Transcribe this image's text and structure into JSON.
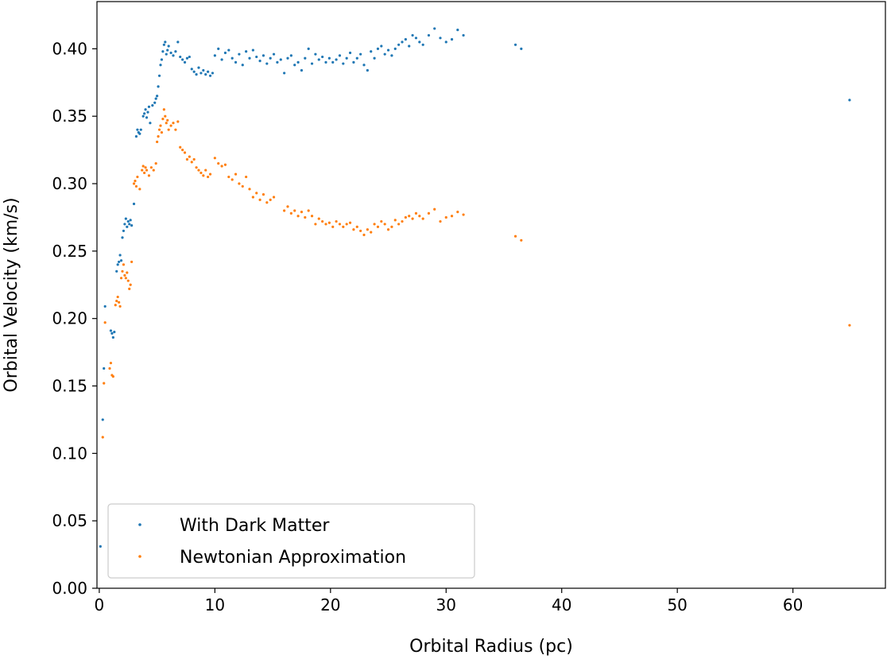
{
  "chart_data": {
    "type": "scatter",
    "title": "",
    "xlabel": "Orbital Radius (pc)",
    "ylabel": "Orbital Velocity (km/s)",
    "xlim": [
      -0.2,
      68
    ],
    "ylim": [
      0.0,
      0.435
    ],
    "xticks": [
      0,
      10,
      20,
      30,
      40,
      50,
      60
    ],
    "yticks": [
      0.0,
      0.05,
      0.1,
      0.15,
      0.2,
      0.25,
      0.3,
      0.35,
      0.4
    ],
    "grid": false,
    "legend_position": "lower-left",
    "series": [
      {
        "name": "With Dark Matter",
        "color": "#1f77b4",
        "points": [
          [
            0.1,
            0.031
          ],
          [
            0.3,
            0.125
          ],
          [
            0.4,
            0.163
          ],
          [
            0.5,
            0.209
          ],
          [
            1.0,
            0.191
          ],
          [
            1.1,
            0.189
          ],
          [
            1.2,
            0.186
          ],
          [
            1.3,
            0.19
          ],
          [
            1.5,
            0.235
          ],
          [
            1.6,
            0.24
          ],
          [
            1.7,
            0.242
          ],
          [
            1.8,
            0.247
          ],
          [
            1.9,
            0.243
          ],
          [
            2.0,
            0.26
          ],
          [
            2.1,
            0.265
          ],
          [
            2.2,
            0.27
          ],
          [
            2.3,
            0.274
          ],
          [
            2.4,
            0.268
          ],
          [
            2.5,
            0.272
          ],
          [
            2.6,
            0.27
          ],
          [
            2.7,
            0.273
          ],
          [
            2.8,
            0.269
          ],
          [
            3.0,
            0.285
          ],
          [
            3.2,
            0.335
          ],
          [
            3.3,
            0.34
          ],
          [
            3.4,
            0.338
          ],
          [
            3.5,
            0.337
          ],
          [
            3.6,
            0.34
          ],
          [
            3.8,
            0.35
          ],
          [
            3.9,
            0.352
          ],
          [
            4.0,
            0.355
          ],
          [
            4.1,
            0.349
          ],
          [
            4.2,
            0.353
          ],
          [
            4.3,
            0.357
          ],
          [
            4.4,
            0.345
          ],
          [
            4.6,
            0.358
          ],
          [
            4.8,
            0.36
          ],
          [
            4.9,
            0.363
          ],
          [
            5.0,
            0.365
          ],
          [
            5.1,
            0.372
          ],
          [
            5.2,
            0.38
          ],
          [
            5.3,
            0.388
          ],
          [
            5.4,
            0.392
          ],
          [
            5.5,
            0.398
          ],
          [
            5.6,
            0.403
          ],
          [
            5.7,
            0.405
          ],
          [
            5.8,
            0.396
          ],
          [
            5.9,
            0.399
          ],
          [
            6.0,
            0.402
          ],
          [
            6.2,
            0.397
          ],
          [
            6.4,
            0.395
          ],
          [
            6.6,
            0.398
          ],
          [
            6.8,
            0.405
          ],
          [
            7.0,
            0.394
          ],
          [
            7.2,
            0.392
          ],
          [
            7.4,
            0.39
          ],
          [
            7.6,
            0.393
          ],
          [
            7.8,
            0.394
          ],
          [
            8.0,
            0.385
          ],
          [
            8.2,
            0.383
          ],
          [
            8.4,
            0.381
          ],
          [
            8.6,
            0.386
          ],
          [
            8.8,
            0.382
          ],
          [
            9.0,
            0.384
          ],
          [
            9.2,
            0.381
          ],
          [
            9.4,
            0.383
          ],
          [
            9.6,
            0.38
          ],
          [
            9.8,
            0.382
          ],
          [
            10.0,
            0.395
          ],
          [
            10.3,
            0.4
          ],
          [
            10.6,
            0.392
          ],
          [
            10.9,
            0.397
          ],
          [
            11.2,
            0.399
          ],
          [
            11.5,
            0.393
          ],
          [
            11.8,
            0.39
          ],
          [
            12.1,
            0.396
          ],
          [
            12.4,
            0.388
          ],
          [
            12.7,
            0.398
          ],
          [
            13.0,
            0.393
          ],
          [
            13.3,
            0.399
          ],
          [
            13.6,
            0.394
          ],
          [
            13.9,
            0.391
          ],
          [
            14.2,
            0.395
          ],
          [
            14.5,
            0.389
          ],
          [
            14.8,
            0.393
          ],
          [
            15.1,
            0.396
          ],
          [
            15.4,
            0.39
          ],
          [
            15.7,
            0.392
          ],
          [
            16.0,
            0.382
          ],
          [
            16.3,
            0.393
          ],
          [
            16.6,
            0.395
          ],
          [
            16.9,
            0.388
          ],
          [
            17.2,
            0.39
          ],
          [
            17.5,
            0.384
          ],
          [
            17.8,
            0.393
          ],
          [
            18.1,
            0.4
          ],
          [
            18.4,
            0.389
          ],
          [
            18.7,
            0.396
          ],
          [
            19.0,
            0.392
          ],
          [
            19.3,
            0.394
          ],
          [
            19.6,
            0.39
          ],
          [
            19.9,
            0.393
          ],
          [
            20.2,
            0.39
          ],
          [
            20.5,
            0.392
          ],
          [
            20.8,
            0.395
          ],
          [
            21.1,
            0.389
          ],
          [
            21.4,
            0.393
          ],
          [
            21.7,
            0.397
          ],
          [
            22.0,
            0.39
          ],
          [
            22.3,
            0.393
          ],
          [
            22.6,
            0.396
          ],
          [
            22.9,
            0.388
          ],
          [
            23.2,
            0.384
          ],
          [
            23.5,
            0.398
          ],
          [
            23.8,
            0.393
          ],
          [
            24.1,
            0.4
          ],
          [
            24.4,
            0.402
          ],
          [
            24.7,
            0.396
          ],
          [
            25.0,
            0.399
          ],
          [
            25.3,
            0.395
          ],
          [
            25.6,
            0.4
          ],
          [
            25.9,
            0.403
          ],
          [
            26.2,
            0.405
          ],
          [
            26.5,
            0.407
          ],
          [
            26.8,
            0.402
          ],
          [
            27.1,
            0.41
          ],
          [
            27.4,
            0.408
          ],
          [
            27.7,
            0.405
          ],
          [
            28.0,
            0.403
          ],
          [
            28.5,
            0.41
          ],
          [
            29.0,
            0.415
          ],
          [
            29.5,
            0.408
          ],
          [
            30.0,
            0.405
          ],
          [
            30.5,
            0.407
          ],
          [
            31.0,
            0.414
          ],
          [
            31.5,
            0.41
          ],
          [
            36.0,
            0.403
          ],
          [
            36.5,
            0.4
          ],
          [
            64.9,
            0.362
          ]
        ]
      },
      {
        "name": "Newtonian Approximation",
        "color": "#ff7f0e",
        "points": [
          [
            0.3,
            0.112
          ],
          [
            0.4,
            0.152
          ],
          [
            0.5,
            0.197
          ],
          [
            0.9,
            0.163
          ],
          [
            1.0,
            0.167
          ],
          [
            1.1,
            0.158
          ],
          [
            1.2,
            0.157
          ],
          [
            1.4,
            0.21
          ],
          [
            1.5,
            0.213
          ],
          [
            1.6,
            0.216
          ],
          [
            1.7,
            0.212
          ],
          [
            1.8,
            0.209
          ],
          [
            1.9,
            0.23
          ],
          [
            2.0,
            0.235
          ],
          [
            2.1,
            0.24
          ],
          [
            2.2,
            0.232
          ],
          [
            2.3,
            0.23
          ],
          [
            2.4,
            0.234
          ],
          [
            2.5,
            0.228
          ],
          [
            2.6,
            0.222
          ],
          [
            2.7,
            0.225
          ],
          [
            2.8,
            0.242
          ],
          [
            3.0,
            0.3
          ],
          [
            3.1,
            0.302
          ],
          [
            3.2,
            0.298
          ],
          [
            3.3,
            0.305
          ],
          [
            3.5,
            0.296
          ],
          [
            3.7,
            0.31
          ],
          [
            3.8,
            0.313
          ],
          [
            3.9,
            0.308
          ],
          [
            4.0,
            0.312
          ],
          [
            4.1,
            0.31
          ],
          [
            4.3,
            0.306
          ],
          [
            4.5,
            0.312
          ],
          [
            4.7,
            0.31
          ],
          [
            4.9,
            0.315
          ],
          [
            5.0,
            0.331
          ],
          [
            5.1,
            0.335
          ],
          [
            5.2,
            0.34
          ],
          [
            5.3,
            0.343
          ],
          [
            5.4,
            0.338
          ],
          [
            5.5,
            0.348
          ],
          [
            5.6,
            0.355
          ],
          [
            5.7,
            0.35
          ],
          [
            5.8,
            0.345
          ],
          [
            5.9,
            0.347
          ],
          [
            6.0,
            0.34
          ],
          [
            6.2,
            0.343
          ],
          [
            6.4,
            0.345
          ],
          [
            6.6,
            0.34
          ],
          [
            6.8,
            0.346
          ],
          [
            7.0,
            0.327
          ],
          [
            7.2,
            0.325
          ],
          [
            7.4,
            0.323
          ],
          [
            7.6,
            0.318
          ],
          [
            7.8,
            0.32
          ],
          [
            8.0,
            0.316
          ],
          [
            8.2,
            0.318
          ],
          [
            8.4,
            0.312
          ],
          [
            8.6,
            0.31
          ],
          [
            8.8,
            0.308
          ],
          [
            9.0,
            0.306
          ],
          [
            9.2,
            0.31
          ],
          [
            9.4,
            0.305
          ],
          [
            9.6,
            0.307
          ],
          [
            10.0,
            0.319
          ],
          [
            10.3,
            0.315
          ],
          [
            10.6,
            0.313
          ],
          [
            10.9,
            0.314
          ],
          [
            11.2,
            0.305
          ],
          [
            11.5,
            0.303
          ],
          [
            11.8,
            0.307
          ],
          [
            12.1,
            0.3
          ],
          [
            12.4,
            0.298
          ],
          [
            12.7,
            0.305
          ],
          [
            13.0,
            0.296
          ],
          [
            13.3,
            0.29
          ],
          [
            13.6,
            0.293
          ],
          [
            13.9,
            0.288
          ],
          [
            14.2,
            0.292
          ],
          [
            14.5,
            0.286
          ],
          [
            14.8,
            0.288
          ],
          [
            15.1,
            0.29
          ],
          [
            16.0,
            0.28
          ],
          [
            16.3,
            0.283
          ],
          [
            16.6,
            0.278
          ],
          [
            16.9,
            0.28
          ],
          [
            17.2,
            0.276
          ],
          [
            17.5,
            0.279
          ],
          [
            17.8,
            0.275
          ],
          [
            18.1,
            0.28
          ],
          [
            18.4,
            0.276
          ],
          [
            18.7,
            0.27
          ],
          [
            19.0,
            0.274
          ],
          [
            19.3,
            0.272
          ],
          [
            19.6,
            0.27
          ],
          [
            19.9,
            0.271
          ],
          [
            20.2,
            0.268
          ],
          [
            20.5,
            0.272
          ],
          [
            20.8,
            0.27
          ],
          [
            21.1,
            0.268
          ],
          [
            21.4,
            0.27
          ],
          [
            21.7,
            0.271
          ],
          [
            22.0,
            0.266
          ],
          [
            22.3,
            0.268
          ],
          [
            22.6,
            0.265
          ],
          [
            22.9,
            0.262
          ],
          [
            23.2,
            0.266
          ],
          [
            23.5,
            0.264
          ],
          [
            23.8,
            0.27
          ],
          [
            24.1,
            0.268
          ],
          [
            24.4,
            0.272
          ],
          [
            24.7,
            0.27
          ],
          [
            25.0,
            0.266
          ],
          [
            25.3,
            0.268
          ],
          [
            25.6,
            0.273
          ],
          [
            25.9,
            0.27
          ],
          [
            26.2,
            0.272
          ],
          [
            26.5,
            0.275
          ],
          [
            26.8,
            0.276
          ],
          [
            27.1,
            0.274
          ],
          [
            27.4,
            0.278
          ],
          [
            27.7,
            0.276
          ],
          [
            28.0,
            0.274
          ],
          [
            28.5,
            0.278
          ],
          [
            29.0,
            0.281
          ],
          [
            29.5,
            0.272
          ],
          [
            30.0,
            0.275
          ],
          [
            30.5,
            0.276
          ],
          [
            31.0,
            0.279
          ],
          [
            31.5,
            0.277
          ],
          [
            36.0,
            0.261
          ],
          [
            36.5,
            0.258
          ],
          [
            64.9,
            0.195
          ]
        ]
      }
    ]
  }
}
